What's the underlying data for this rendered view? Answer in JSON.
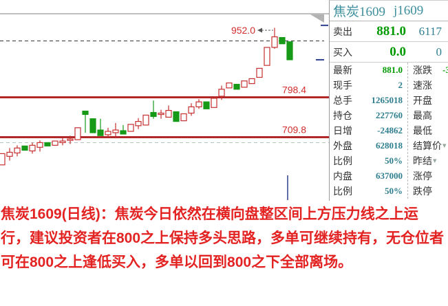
{
  "panel": {
    "title_cn": "焦炭1609",
    "title_code": "j1609",
    "quote_rows": [
      {
        "label": "卖出",
        "price": "881.0",
        "qty": "6117"
      },
      {
        "label": "买入",
        "price": "0.0",
        "qty": "0"
      }
    ],
    "stats_left": [
      {
        "label": "最新",
        "value": "881.0",
        "color": "green"
      },
      {
        "label": "现手",
        "value": "2"
      },
      {
        "label": "总手",
        "value": "1265018"
      },
      {
        "label": "持仓",
        "value": "227760"
      },
      {
        "label": "日增",
        "value": "-24862"
      },
      {
        "label": "外盘",
        "value": "628018"
      },
      {
        "label": "比例",
        "value": "50%"
      },
      {
        "label": "内盘",
        "value": "637000"
      },
      {
        "label": "比例",
        "value": "50%"
      }
    ],
    "stats_right": [
      {
        "label": "涨跌",
        "value": "-3",
        "color": "green"
      },
      {
        "label": "速涨",
        "value": ""
      },
      {
        "label": "开盘",
        "value": ""
      },
      {
        "label": "最高",
        "value": ""
      },
      {
        "label": "最低",
        "value": ""
      },
      {
        "label": "结算价",
        "value": "",
        "arrow": true
      },
      {
        "label": "昨结",
        "value": "",
        "arrow": true
      },
      {
        "label": "涨停",
        "value": ""
      },
      {
        "label": "跌停",
        "value": ""
      }
    ]
  },
  "chart_data": {
    "type": "candlestick",
    "title": "焦炭1609 (j1609) 日线",
    "latest_price": 881.0,
    "high_label": "952.0",
    "reference_lines": [
      {
        "label": "952.0",
        "price": 952.0,
        "style": "arrow-label"
      },
      {
        "label": "798.4",
        "price": 798.4,
        "style": "solid-thick"
      },
      {
        "label": "709.8",
        "price": 709.8,
        "style": "solid-thick"
      },
      {
        "price": 924.0,
        "style": "dashed-black"
      },
      {
        "price": 698.0,
        "style": "dashed-gray"
      }
    ],
    "right_edge_markers": [
      957.5,
      881.0
    ],
    "candles": [
      [
        647.5,
        672.5,
        647.5,
        672.5
      ],
      [
        666.5,
        685,
        657,
        675.5
      ],
      [
        674,
        691,
        666.5,
        685
      ],
      [
        689.5,
        689.5,
        680,
        680
      ],
      [
        678.5,
        697,
        672.5,
        691
      ],
      [
        686.5,
        702,
        677,
        697
      ],
      [
        697,
        697,
        689.5,
        689.5
      ],
      [
        691,
        700.5,
        691,
        700.5
      ],
      [
        697,
        708,
        691,
        700.5
      ],
      [
        702,
        712.5,
        694,
        705
      ],
      [
        703.5,
        730,
        703.5,
        730
      ],
      [
        767,
        767,
        719,
        759.5
      ],
      [
        750,
        750,
        719,
        719
      ],
      [
        725,
        750,
        712.5,
        712.5
      ],
      [
        714.5,
        730,
        708,
        722
      ],
      [
        719,
        740.5,
        706.5,
        725
      ],
      [
        723.5,
        736,
        716,
        716
      ],
      [
        722,
        737.5,
        722,
        737.5
      ],
      [
        734.5,
        751.5,
        727,
        744
      ],
      [
        736,
        758,
        736,
        758
      ],
      [
        764,
        790.5,
        750,
        755
      ],
      [
        759.5,
        770,
        750,
        762.5
      ],
      [
        753.5,
        779.5,
        753.5,
        768.5
      ],
      [
        765.5,
        765.5,
        744,
        744
      ],
      [
        745.5,
        761,
        745.5,
        761
      ],
      [
        762.5,
        784.5,
        756.5,
        776.5
      ],
      [
        776.5,
        793.5,
        772,
        787.5
      ],
      [
        787.5,
        787.5,
        772,
        772
      ],
      [
        775,
        795.5,
        775,
        795.5
      ],
      [
        800,
        823.5,
        792,
        815.5
      ],
      [
        818.5,
        829.5,
        818.5,
        829.5
      ],
      [
        826.5,
        826.5,
        815.5,
        815.5
      ],
      [
        820,
        834,
        820,
        834
      ],
      [
        828,
        839,
        828,
        839
      ],
      [
        842,
        862,
        842,
        862
      ],
      [
        868.5,
        908.5,
        868.5,
        908.5
      ],
      [
        908.5,
        952,
        905.5,
        932
      ],
      [
        930.5,
        930.5,
        916.5,
        916.5
      ],
      [
        921,
        921,
        881,
        881
      ]
    ]
  },
  "commentary": {
    "lines": [
      "焦炭1609(日线)：焦炭今日依然在横向盘整区间上方压力线之上运",
      "行，建议投资者在800之上保持多头思路，多单可继续持有，无仓位者",
      "可在800之上逢低买入，多单以回到800之下全部离场。"
    ]
  },
  "colors": {
    "up_candle": "#c62f2f",
    "down_candle": "#179a17",
    "thick_line": "#b22828",
    "price_label": "#d22c2c",
    "dashed_black": "#333333",
    "dashed_gray": "#b4c2c2",
    "commentary_red": "#e32222",
    "value_teal": "#2f7f8f",
    "value_green": "#009b00",
    "title_teal": "#3d8f9d",
    "navy_marker": "#2e3e8e",
    "label_gray": "#333333",
    "arrow_gray_green": "#98a89c"
  }
}
